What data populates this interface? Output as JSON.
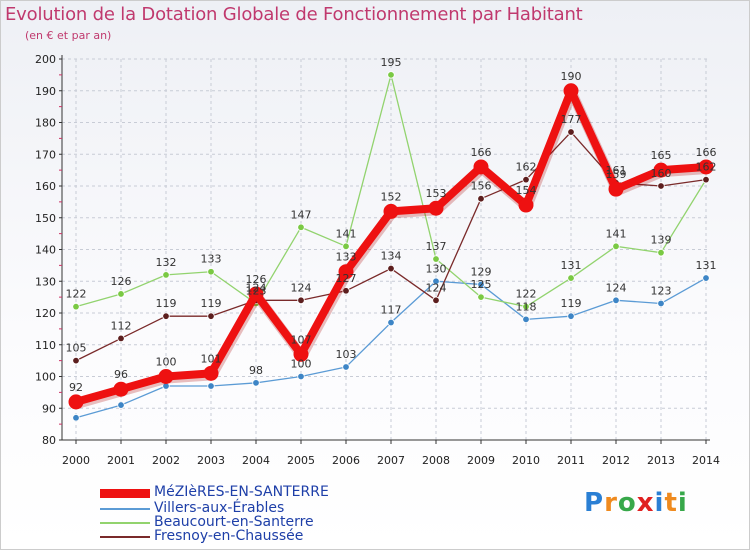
{
  "chart_data": {
    "type": "line",
    "title": "Evolution de la Dotation Globale de Fonctionnement par Habitant",
    "subtitle": "(en € et par an)",
    "xlabel": "",
    "ylabel": "",
    "ylim": [
      80,
      200
    ],
    "yticks": [
      80,
      90,
      100,
      110,
      120,
      130,
      140,
      150,
      160,
      170,
      180,
      190,
      200
    ],
    "categories": [
      "2000",
      "2001",
      "2002",
      "2003",
      "2004",
      "2005",
      "2006",
      "2007",
      "2008",
      "2009",
      "2010",
      "2011",
      "2012",
      "2013",
      "2014"
    ],
    "series": [
      {
        "name": "Villers-aux-Érables",
        "color": "#5b9bd5",
        "marker": "#3d85c6",
        "values": [
          87,
          91,
          97,
          97,
          98,
          100,
          103,
          117,
          130,
          129,
          118,
          119,
          124,
          123,
          131
        ],
        "labels": [
          null,
          null,
          null,
          null,
          "98",
          "100",
          "103",
          "117",
          "130",
          "129",
          "118",
          "119",
          "124",
          "123",
          "131"
        ]
      },
      {
        "name": "Beaucourt-en-Santerre",
        "color": "#92d36e",
        "marker": "#7ac943",
        "values": [
          122,
          126,
          132,
          133,
          123,
          147,
          141,
          195,
          137,
          125,
          122,
          131,
          141,
          139,
          162
        ],
        "labels": [
          "122",
          "126",
          "132",
          "133",
          "123",
          "147",
          "141",
          "195",
          "137",
          "125",
          "122",
          "131",
          "141",
          "139",
          null
        ]
      },
      {
        "name": "Fresnoy-en-Chaussée",
        "color": "#7a2a2a",
        "marker": "#5c1e1e",
        "values": [
          105,
          112,
          119,
          119,
          124,
          124,
          127,
          134,
          124,
          156,
          162,
          177,
          161,
          160,
          162
        ],
        "labels": [
          "105",
          "112",
          "119",
          "119",
          "124",
          "124",
          "127",
          "134",
          "124",
          "156",
          "162",
          "177",
          "161",
          "160",
          "162"
        ]
      },
      {
        "name": "MéZIèRES-EN-SANTERRE",
        "color": "#ee1111",
        "marker": "#ee1111",
        "values": [
          92,
          96,
          100,
          101,
          126,
          107,
          133,
          152,
          153,
          166,
          154,
          190,
          159,
          165,
          166
        ],
        "labels": [
          "92",
          "96",
          "100",
          "101",
          "126",
          "107",
          "133",
          "152",
          "153",
          "166",
          "154",
          "190",
          "159",
          "165",
          "166"
        ]
      }
    ]
  },
  "legend": {
    "items": [
      {
        "label": "MéZIèRES-EN-SANTERRE",
        "color": "#ee1111"
      },
      {
        "label": "Villers-aux-Érables",
        "color": "#5b9bd5"
      },
      {
        "label": "Beaucourt-en-Santerre",
        "color": "#92d36e"
      },
      {
        "label": "Fresnoy-en-Chaussée",
        "color": "#7a2a2a"
      }
    ]
  },
  "brand": {
    "text": "Proxiti"
  }
}
